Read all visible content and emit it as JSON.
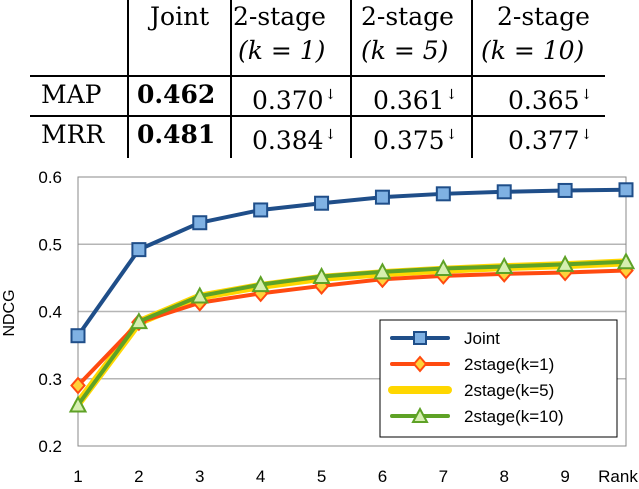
{
  "table": {
    "columns": [
      {
        "key": "joint",
        "line1": "Joint",
        "line2": ""
      },
      {
        "key": "k1",
        "line1": "2-stage",
        "line2": "(k = 1)"
      },
      {
        "key": "k5",
        "line1": "2-stage",
        "line2": "(k = 5)"
      },
      {
        "key": "k10",
        "line1": "2-stage",
        "line2": "(k = 10)"
      }
    ],
    "rows": [
      {
        "metric": "MAP",
        "joint": "0.462",
        "k1": "0.370",
        "k5": "0.361",
        "k10": "0.365",
        "marker": "↓"
      },
      {
        "metric": "MRR",
        "joint": "0.481",
        "k1": "0.384",
        "k5": "0.375",
        "k10": "0.377",
        "marker": "↓"
      }
    ]
  },
  "chart_data": {
    "type": "line",
    "ylabel": "NDCG",
    "xlabel": "Rank",
    "x": [
      1,
      2,
      3,
      4,
      5,
      6,
      7,
      8,
      9,
      10
    ],
    "x_tick_labels": [
      "1",
      "2",
      "3",
      "4",
      "5",
      "6",
      "7",
      "8",
      "9",
      "Rank"
    ],
    "ylim": [
      0.2,
      0.6
    ],
    "y_ticks": [
      0.2,
      0.3,
      0.4,
      0.5,
      0.6
    ],
    "y_tick_labels": [
      "0.2",
      "0.3",
      "0.4",
      "0.5",
      "0.6"
    ],
    "grid": "horizontal",
    "legend_position": "bottom-right",
    "series": [
      {
        "name": "Joint",
        "color": "#1f4e89",
        "marker": "square",
        "marker_fill": "#7fb1e3",
        "values": [
          0.364,
          0.492,
          0.532,
          0.551,
          0.561,
          0.57,
          0.575,
          0.578,
          0.58,
          0.581
        ]
      },
      {
        "name": "2stage(k=1)",
        "color": "#ff4a10",
        "marker": "diamond",
        "marker_fill": "#ffd23a",
        "values": [
          0.29,
          0.384,
          0.413,
          0.427,
          0.438,
          0.448,
          0.453,
          0.456,
          0.458,
          0.461
        ]
      },
      {
        "name": "2stage(k=5)",
        "color": "#ffd700",
        "marker": "none",
        "marker_fill": "#ffd700",
        "values": [
          0.263,
          0.384,
          0.422,
          0.438,
          0.45,
          0.457,
          0.462,
          0.466,
          0.469,
          0.473
        ]
      },
      {
        "name": "2stage(k=10)",
        "color": "#5ea226",
        "marker": "triangle",
        "marker_fill": "#d6efb0",
        "values": [
          0.261,
          0.385,
          0.423,
          0.44,
          0.452,
          0.459,
          0.464,
          0.467,
          0.47,
          0.474
        ]
      }
    ]
  }
}
